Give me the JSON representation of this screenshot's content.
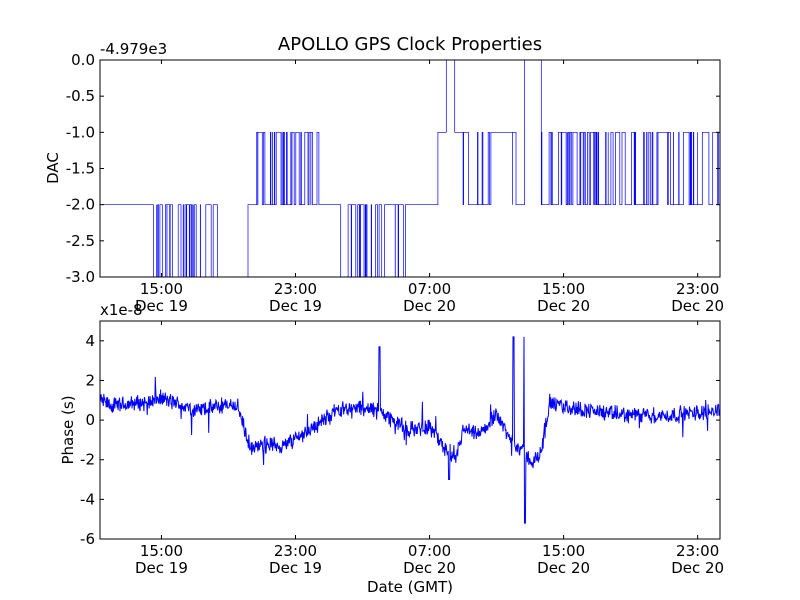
{
  "figure": {
    "title": "APOLLO GPS Clock Properties",
    "xlabel": "Date (GMT)"
  },
  "colors": {
    "line": "#0000ff",
    "axes": "#000000",
    "background": "#ffffff"
  },
  "chart_data": [
    {
      "type": "line",
      "name": "dac",
      "ylabel": "DAC",
      "offset_text": "-4.979e3",
      "xlim": [
        "2020-12-19T11:20",
        "2020-12-21T00:20"
      ],
      "ylim": [
        -3.0,
        0.0
      ],
      "yticks": [
        0.0,
        -0.5,
        -1.0,
        -1.5,
        -2.0,
        -2.5,
        -3.0
      ],
      "ytick_labels": [
        "0.0",
        "-0.5",
        "-1.0",
        "-1.5",
        "-2.0",
        "-2.5",
        "-3.0"
      ],
      "xticks": [
        "2020-12-19T15:00",
        "2020-12-19T23:00",
        "2020-12-20T07:00",
        "2020-12-20T15:00",
        "2020-12-20T23:00"
      ],
      "xtick_labels": [
        [
          "15:00",
          "Dec 19"
        ],
        [
          "23:00",
          "Dec 19"
        ],
        [
          "07:00",
          "Dec 20"
        ],
        [
          "15:00",
          "Dec 20"
        ],
        [
          "23:00",
          "Dec 20"
        ]
      ],
      "segments": [
        {
          "start": "2020-12-19T11:20",
          "end": "2020-12-19T14:10",
          "levels": [
            -2.0
          ],
          "switches": 2
        },
        {
          "start": "2020-12-19T14:10",
          "end": "2020-12-19T17:20",
          "levels": [
            -2.0,
            -3.0
          ],
          "switches": 30
        },
        {
          "start": "2020-12-19T17:20",
          "end": "2020-12-19T19:20",
          "levels": [
            -3.0,
            -2.0
          ],
          "switches": 4
        },
        {
          "start": "2020-12-19T19:20",
          "end": "2020-12-19T20:10",
          "levels": [
            -3.0
          ],
          "switches": 0
        },
        {
          "start": "2020-12-19T20:10",
          "end": "2020-12-19T20:40",
          "levels": [
            -2.0
          ],
          "switches": 0
        },
        {
          "start": "2020-12-19T20:40",
          "end": "2020-12-20T00:30",
          "levels": [
            -2.0,
            -1.0
          ],
          "switches": 40
        },
        {
          "start": "2020-12-20T00:30",
          "end": "2020-12-20T01:40",
          "levels": [
            -2.0
          ],
          "switches": 0
        },
        {
          "start": "2020-12-20T01:40",
          "end": "2020-12-20T04:00",
          "levels": [
            -2.0,
            -3.0
          ],
          "switches": 20
        },
        {
          "start": "2020-12-20T04:00",
          "end": "2020-12-20T05:40",
          "levels": [
            -2.0,
            -3.0
          ],
          "switches": 8
        },
        {
          "start": "2020-12-20T05:40",
          "end": "2020-12-20T07:30",
          "levels": [
            -2.0
          ],
          "switches": 0
        },
        {
          "start": "2020-12-20T07:30",
          "end": "2020-12-20T08:00",
          "levels": [
            -1.0
          ],
          "switches": 0
        },
        {
          "start": "2020-12-20T08:00",
          "end": "2020-12-20T08:30",
          "levels": [
            0.0
          ],
          "switches": 0
        },
        {
          "start": "2020-12-20T08:30",
          "end": "2020-12-20T09:00",
          "levels": [
            -1.0
          ],
          "switches": 0
        },
        {
          "start": "2020-12-20T09:00",
          "end": "2020-12-20T12:40",
          "levels": [
            -2.0,
            -1.0
          ],
          "switches": 12
        },
        {
          "start": "2020-12-20T12:40",
          "end": "2020-12-20T13:40",
          "levels": [
            0.0
          ],
          "switches": 0
        },
        {
          "start": "2020-12-20T13:40",
          "end": "2020-12-20T18:30",
          "levels": [
            -2.0,
            -1.0
          ],
          "switches": 45
        },
        {
          "start": "2020-12-20T18:30",
          "end": "2020-12-21T00:20",
          "levels": [
            -1.0,
            -2.0
          ],
          "switches": 40
        }
      ]
    },
    {
      "type": "line",
      "name": "phase",
      "ylabel": "Phase (s)",
      "offset_text": "x1e-8",
      "xlim": [
        "2020-12-19T11:20",
        "2020-12-21T00:20"
      ],
      "ylim": [
        -6,
        5
      ],
      "yticks": [
        4,
        2,
        0,
        -2,
        -4,
        -6
      ],
      "ytick_labels": [
        "4",
        "2",
        "0",
        "-2",
        "-4",
        "-6"
      ],
      "xticks": [
        "2020-12-19T15:00",
        "2020-12-19T23:00",
        "2020-12-20T07:00",
        "2020-12-20T15:00",
        "2020-12-20T23:00"
      ],
      "xtick_labels": [
        [
          "15:00",
          "Dec 19"
        ],
        [
          "23:00",
          "Dec 19"
        ],
        [
          "07:00",
          "Dec 20"
        ],
        [
          "15:00",
          "Dec 20"
        ],
        [
          "23:00",
          "Dec 20"
        ]
      ],
      "trend_x": [
        "2020-12-19T11:20",
        "2020-12-19T12:00",
        "2020-12-19T14:00",
        "2020-12-19T15:00",
        "2020-12-19T17:00",
        "2020-12-19T19:30",
        "2020-12-19T20:20",
        "2020-12-19T21:20",
        "2020-12-19T22:20",
        "2020-12-20T00:20",
        "2020-12-20T01:40",
        "2020-12-20T03:00",
        "2020-12-20T04:00",
        "2020-12-20T05:40",
        "2020-12-20T07:00",
        "2020-12-20T08:30",
        "2020-12-20T09:00",
        "2020-12-20T10:00",
        "2020-12-20T11:00",
        "2020-12-20T11:40",
        "2020-12-20T12:30",
        "2020-12-20T13:10",
        "2020-12-20T13:40",
        "2020-12-20T14:10",
        "2020-12-20T18:00",
        "2020-12-20T21:00",
        "2020-12-21T00:20"
      ],
      "trend_y": [
        1.0,
        0.7,
        0.9,
        1.1,
        0.5,
        0.8,
        -1.5,
        -1.2,
        -1.3,
        -0.2,
        0.6,
        0.6,
        0.5,
        -0.5,
        -0.3,
        -2.2,
        -0.5,
        -0.8,
        0.4,
        -0.8,
        -1.5,
        -2.2,
        -1.6,
        0.8,
        0.3,
        0.2,
        0.5
      ],
      "noise_amplitude": 0.35,
      "spikes": [
        {
          "x": "2020-12-20T04:00",
          "y": 3.7
        },
        {
          "x": "2020-12-20T08:10",
          "y": -3.0
        },
        {
          "x": "2020-12-20T12:00",
          "y": 4.2
        },
        {
          "x": "2020-12-20T12:40",
          "y": 4.2
        },
        {
          "x": "2020-12-20T12:42",
          "y": -5.2
        }
      ]
    }
  ]
}
